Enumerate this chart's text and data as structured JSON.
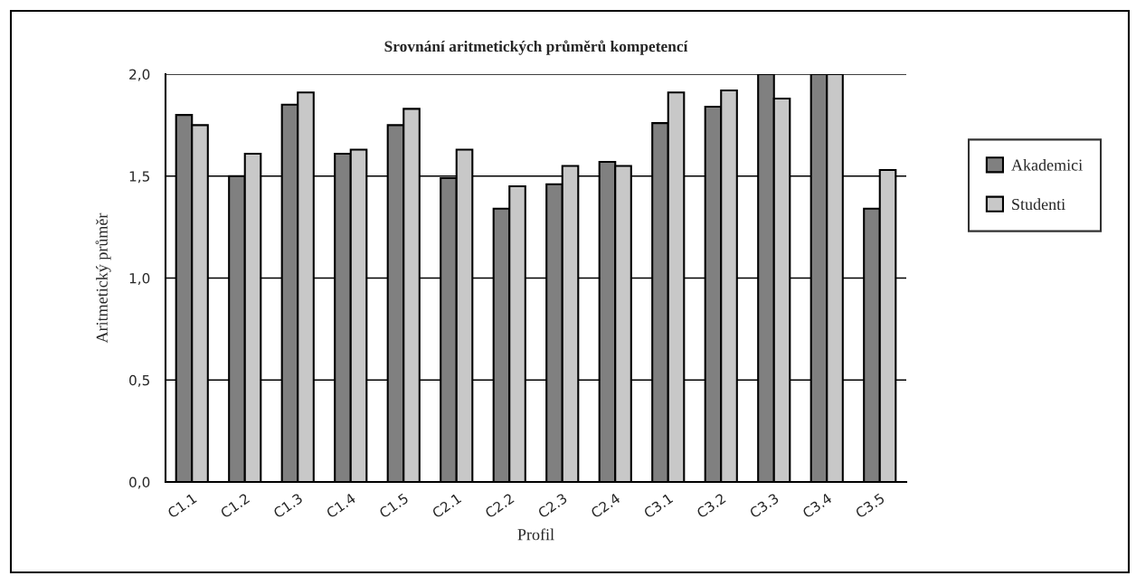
{
  "chart_data": {
    "type": "bar",
    "title": "Srovnání aritmetických průměrů kompetencí",
    "xlabel": "Profil",
    "ylabel": "Aritmetický průměr",
    "categories": [
      "C1.1",
      "C1.2",
      "C1.3",
      "C1.4",
      "C1.5",
      "C2.1",
      "C2.2",
      "C2.3",
      "C2.4",
      "C3.1",
      "C3.2",
      "C3.3",
      "C3.4",
      "C3.5"
    ],
    "series": [
      {
        "name": "Akademici",
        "color": "#808080",
        "values": [
          1.8,
          1.5,
          1.85,
          1.61,
          1.75,
          1.49,
          1.34,
          1.46,
          1.57,
          1.76,
          1.84,
          2.0,
          2.0,
          1.34
        ]
      },
      {
        "name": "Studenti",
        "color": "#c8c8c8",
        "values": [
          1.75,
          1.61,
          1.91,
          1.63,
          1.83,
          1.63,
          1.45,
          1.55,
          1.55,
          1.91,
          1.92,
          1.88,
          2.0,
          1.53
        ]
      }
    ],
    "ylim": [
      0,
      2
    ],
    "yticks": [
      {
        "value": 0,
        "label": "0,0"
      },
      {
        "value": 0.5,
        "label": "0,5"
      },
      {
        "value": 1,
        "label": "1,0"
      },
      {
        "value": 1.5,
        "label": "1,5"
      },
      {
        "value": 2,
        "label": "2,0"
      }
    ],
    "grid": "y",
    "legend": "right"
  }
}
